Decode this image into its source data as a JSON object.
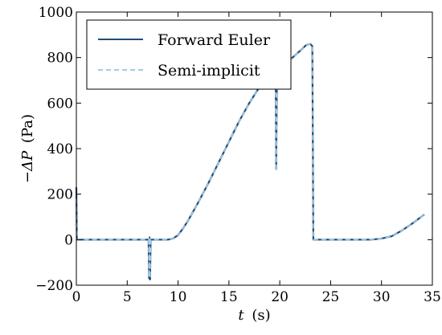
{
  "chart_data": {
    "type": "line",
    "title": "",
    "xlabel": "t (s)",
    "xlabel_var": "t",
    "xlabel_unit": "(s)",
    "ylabel": "−ΔP (Pa)",
    "ylabel_var": "−ΔP",
    "ylabel_unit": "(Pa)",
    "xlim": [
      0,
      35
    ],
    "ylim": [
      -200,
      1000
    ],
    "xticks": [
      0,
      5,
      10,
      15,
      20,
      25,
      30,
      35
    ],
    "yticks": [
      -200,
      0,
      200,
      400,
      600,
      800,
      1000
    ],
    "xtick_labels": [
      "0",
      "5",
      "10",
      "15",
      "20",
      "25",
      "30",
      "35"
    ],
    "ytick_labels": [
      "−200",
      "0",
      "200",
      "400",
      "600",
      "800",
      "1000"
    ],
    "grid": false,
    "legend_position": "top-left",
    "series": [
      {
        "name": "Forward Euler",
        "color": "#1f4e79",
        "style": "solid",
        "x": [
          0,
          0.05,
          0.1,
          0.2,
          7.1,
          7.15,
          7.2,
          7.25,
          7.3,
          9.0,
          9.5,
          10,
          10.5,
          11,
          12,
          13,
          14,
          15,
          16,
          17,
          18,
          19,
          19.6,
          19.65,
          19.7,
          19.75,
          19.8,
          20,
          21,
          22,
          22.6,
          23.0,
          23.2,
          23.3,
          23.5,
          25,
          29,
          30,
          31,
          32,
          33,
          34.2
        ],
        "y": [
          230,
          0,
          0,
          0,
          0,
          -170,
          10,
          -175,
          0,
          0,
          5,
          20,
          50,
          85,
          165,
          250,
          340,
          430,
          520,
          600,
          670,
          690,
          730,
          310,
          640,
          710,
          720,
          740,
          790,
          830,
          855,
          860,
          850,
          0,
          0,
          0,
          0,
          5,
          15,
          40,
          70,
          110
        ]
      },
      {
        "name": "Semi-implicit",
        "color": "#a6cbe3",
        "style": "dashed",
        "x": [
          0,
          0.05,
          0.1,
          0.2,
          7.1,
          7.15,
          7.2,
          7.25,
          7.3,
          9.0,
          9.5,
          10,
          10.5,
          11,
          12,
          13,
          14,
          15,
          16,
          17,
          18,
          19,
          19.6,
          19.65,
          19.7,
          19.75,
          19.8,
          20,
          21,
          22,
          22.6,
          23.0,
          23.2,
          23.3,
          23.5,
          25,
          29,
          30,
          31,
          32,
          33,
          34.2
        ],
        "y": [
          180,
          0,
          0,
          0,
          0,
          -165,
          10,
          -170,
          0,
          0,
          5,
          20,
          50,
          85,
          165,
          250,
          340,
          430,
          520,
          600,
          670,
          690,
          725,
          300,
          640,
          705,
          720,
          740,
          790,
          830,
          855,
          860,
          850,
          0,
          0,
          0,
          0,
          5,
          15,
          40,
          70,
          110
        ]
      }
    ]
  }
}
